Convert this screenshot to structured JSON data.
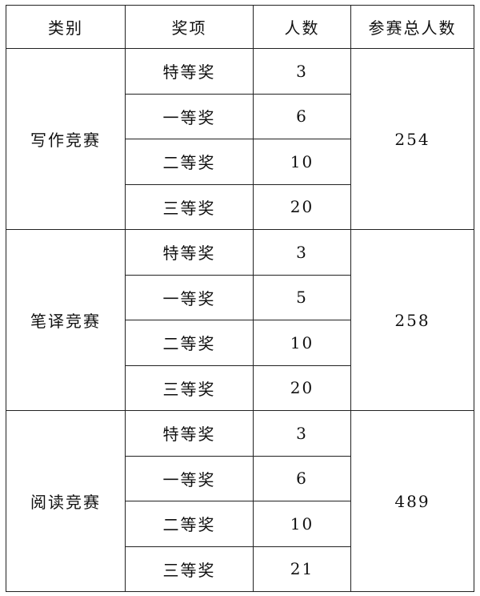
{
  "table": {
    "headers": [
      "类别",
      "奖项",
      "人数",
      "参赛总人数"
    ],
    "groups": [
      {
        "category": "写作竞赛",
        "total": "254",
        "rows": [
          {
            "award": "特等奖",
            "count": "3"
          },
          {
            "award": "一等奖",
            "count": "6"
          },
          {
            "award": "二等奖",
            "count": "10"
          },
          {
            "award": "三等奖",
            "count": "20"
          }
        ]
      },
      {
        "category": "笔译竞赛",
        "total": "258",
        "rows": [
          {
            "award": "特等奖",
            "count": "3"
          },
          {
            "award": "一等奖",
            "count": "5"
          },
          {
            "award": "二等奖",
            "count": "10"
          },
          {
            "award": "三等奖",
            "count": "20"
          }
        ]
      },
      {
        "category": "阅读竞赛",
        "total": "489",
        "rows": [
          {
            "award": "特等奖",
            "count": "3"
          },
          {
            "award": "一等奖",
            "count": "6"
          },
          {
            "award": "二等奖",
            "count": "10"
          },
          {
            "award": "三等奖",
            "count": "21"
          }
        ]
      }
    ]
  }
}
